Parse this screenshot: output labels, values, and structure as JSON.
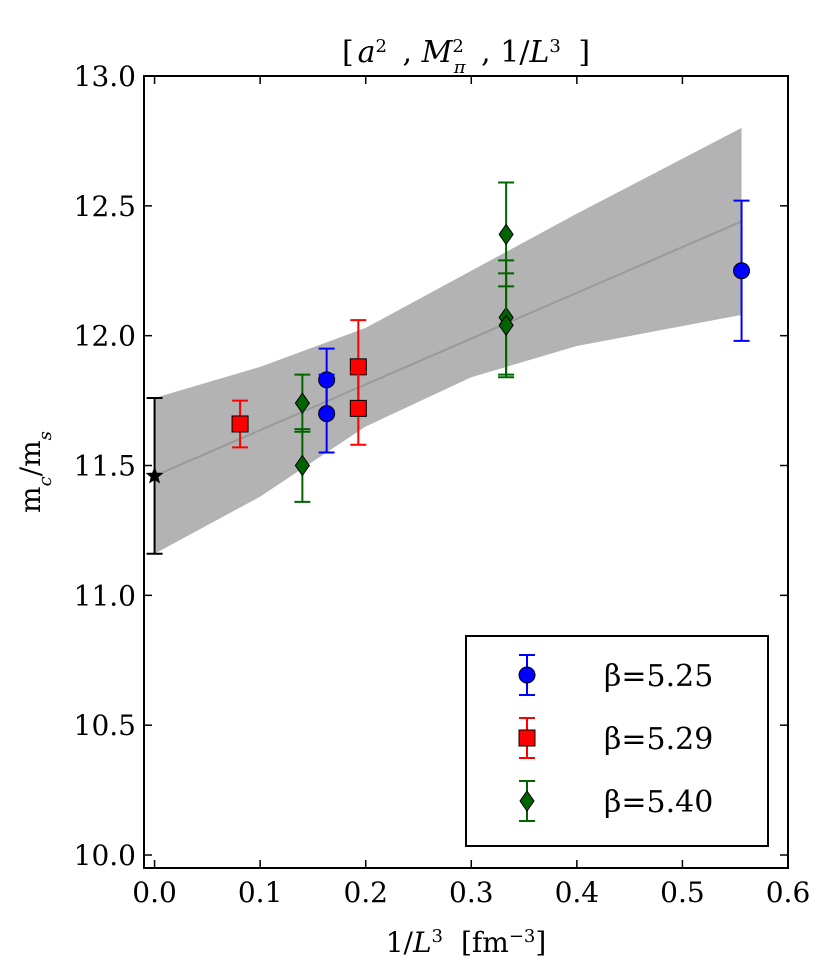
{
  "chart_data": {
    "type": "scatter",
    "title": "[a², M²π , 1/L³ ]",
    "xlabel": "1/L³ [fm⁻³]",
    "ylabel": "mc/ms",
    "xlim": [
      -0.01,
      0.6
    ],
    "ylim": [
      9.95,
      13.0
    ],
    "x_ticks": [
      "0.0",
      "0.1",
      "0.2",
      "0.3",
      "0.4",
      "0.5",
      "0.6"
    ],
    "y_ticks": [
      "10.0",
      "10.5",
      "11.0",
      "11.5",
      "12.0",
      "12.5",
      "13.0"
    ],
    "grid": false,
    "legend_position": "bottom-right",
    "fit": {
      "line": [
        [
          0.0,
          11.46
        ],
        [
          0.556,
          12.44
        ]
      ],
      "band_upper": [
        [
          0.0,
          11.76
        ],
        [
          0.1,
          11.88
        ],
        [
          0.2,
          12.03
        ],
        [
          0.3,
          12.25
        ],
        [
          0.4,
          12.47
        ],
        [
          0.556,
          12.8
        ]
      ],
      "band_lower": [
        [
          0.0,
          11.16
        ],
        [
          0.1,
          11.38
        ],
        [
          0.2,
          11.65
        ],
        [
          0.3,
          11.84
        ],
        [
          0.4,
          11.96
        ],
        [
          0.556,
          12.08
        ]
      ],
      "color": "#b3b3b3"
    },
    "extrapolation": {
      "x": 0.0,
      "y": 11.46,
      "err": 0.3,
      "marker": "star",
      "color": "#000000"
    },
    "series": [
      {
        "name": "β=5.25",
        "legend_label": "β=5.25",
        "marker": "circle",
        "color": "#0000ff",
        "points": [
          {
            "x": 0.163,
            "y": 11.83,
            "err": 0.12
          },
          {
            "x": 0.163,
            "y": 11.7,
            "err": 0.15
          },
          {
            "x": 0.556,
            "y": 12.25,
            "err": 0.27
          }
        ]
      },
      {
        "name": "β=5.29",
        "legend_label": "β=5.29",
        "marker": "square",
        "color": "#ff0000",
        "points": [
          {
            "x": 0.081,
            "y": 11.66,
            "err": 0.09
          },
          {
            "x": 0.193,
            "y": 11.88,
            "err": 0.18
          },
          {
            "x": 0.193,
            "y": 11.72,
            "err": 0.14
          }
        ]
      },
      {
        "name": "β=5.40",
        "legend_label": "β=5.40",
        "marker": "diamond",
        "color": "#006400",
        "points": [
          {
            "x": 0.14,
            "y": 11.74,
            "err": 0.11
          },
          {
            "x": 0.14,
            "y": 11.5,
            "err": 0.14
          },
          {
            "x": 0.333,
            "y": 12.39,
            "err": 0.2
          },
          {
            "x": 0.333,
            "y": 12.07,
            "err": 0.22
          },
          {
            "x": 0.333,
            "y": 12.04,
            "err": 0.2
          }
        ]
      }
    ]
  }
}
